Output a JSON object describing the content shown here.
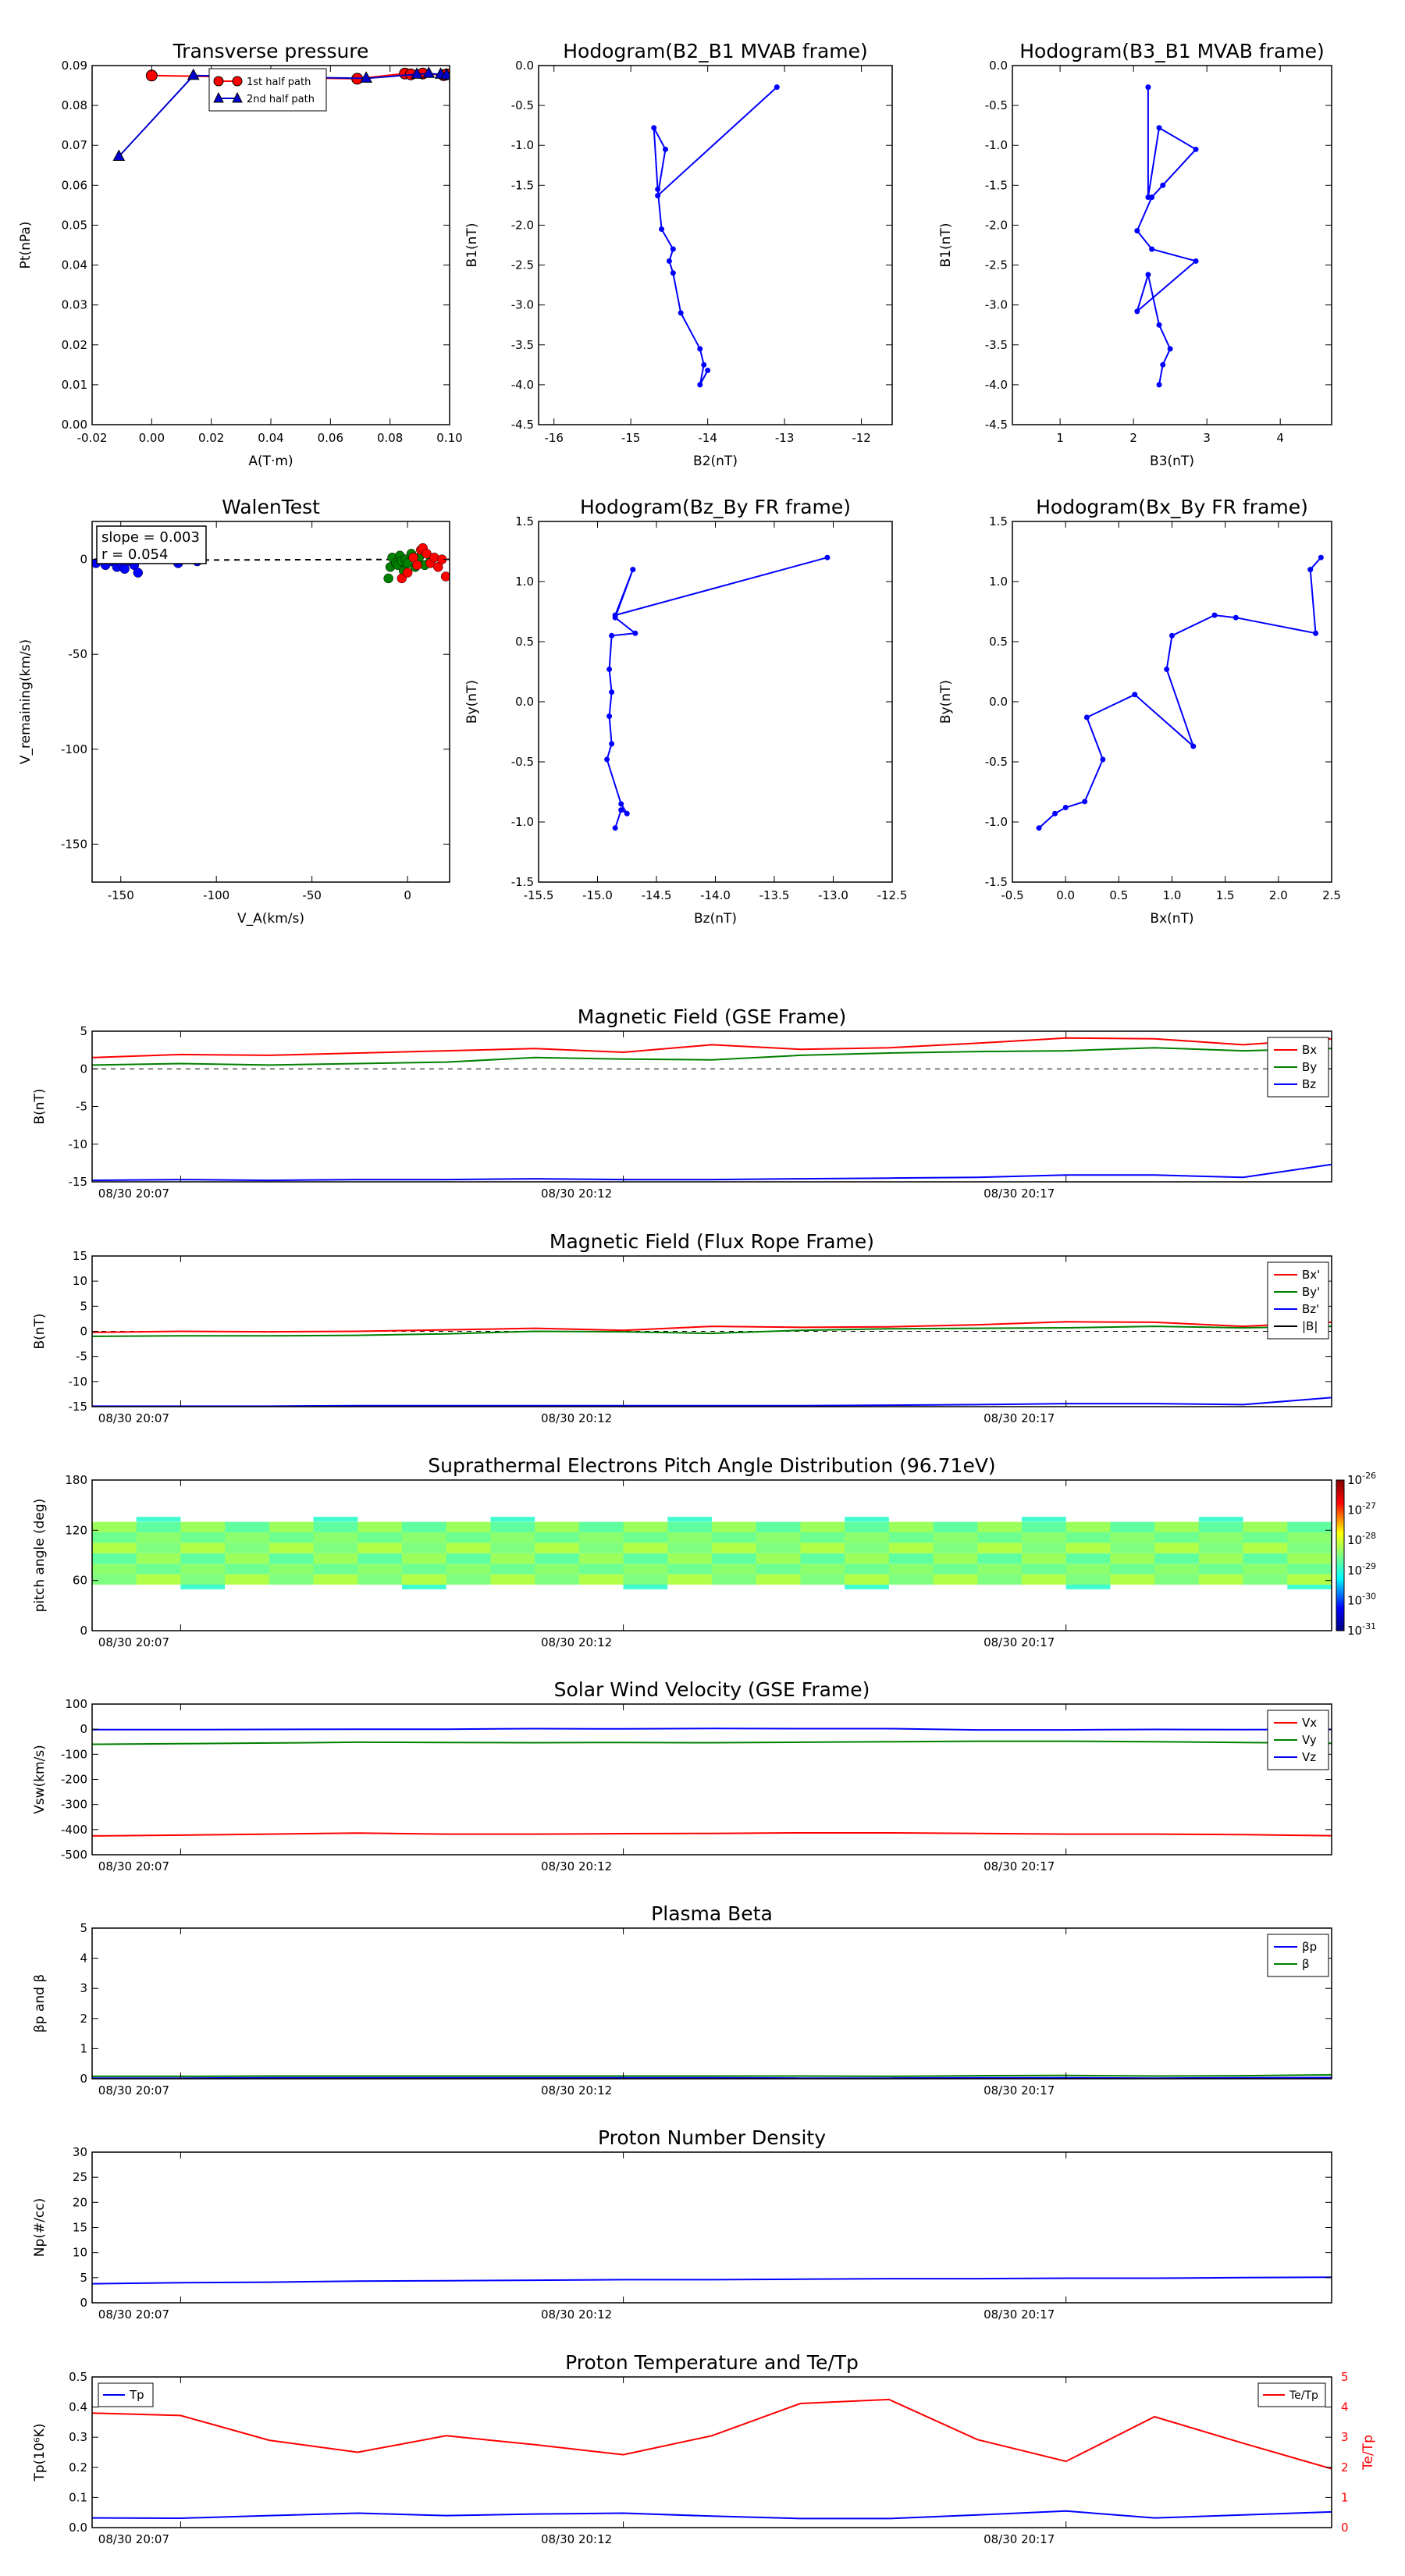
{
  "chart_data": [
    {
      "type": "line",
      "title": "Transverse pressure",
      "xlabel": "A(T·m)",
      "ylabel": "Pt(nPa)",
      "xlim": [
        -0.02,
        0.1
      ],
      "ylim": [
        0.0,
        0.09
      ],
      "xticks": [
        "-0.02",
        "0.00",
        "0.02",
        "0.04",
        "0.06",
        "0.08",
        "0.10"
      ],
      "yticks": [
        "0.00",
        "0.01",
        "0.02",
        "0.03",
        "0.04",
        "0.05",
        "0.06",
        "0.07",
        "0.08",
        "0.09"
      ],
      "legend": "top-center",
      "series": [
        {
          "name": "1st half path",
          "color": "#ff0000",
          "marker": "circle",
          "x": [
            0.0,
            0.069,
            0.085,
            0.087,
            0.091,
            0.098,
            0.099
          ],
          "y": [
            0.0875,
            0.0867,
            0.088,
            0.0878,
            0.088,
            0.0876,
            0.0878
          ]
        },
        {
          "name": "2nd half path",
          "color": "#0000cc",
          "marker": "triangle",
          "x": [
            -0.011,
            0.014,
            0.072,
            0.089,
            0.093,
            0.097,
            0.099
          ],
          "y": [
            0.0672,
            0.0875,
            0.0868,
            0.0878,
            0.088,
            0.0878,
            0.0876
          ]
        }
      ]
    },
    {
      "type": "line",
      "title": "Hodogram(B2_B1 MVAB frame)",
      "xlabel": "B2(nT)",
      "ylabel": "B1(nT)",
      "xlim": [
        -16.2,
        -11.6
      ],
      "ylim": [
        -4.5,
        0.0
      ],
      "xticks": [
        "-16",
        "-15",
        "-14",
        "-13",
        "-12"
      ],
      "yticks": [
        "-4.5",
        "-4.0",
        "-3.5",
        "-3.0",
        "-2.5",
        "-2.0",
        "-1.5",
        "-1.0",
        "-0.5",
        "0.0"
      ],
      "series": [
        {
          "name": "",
          "color": "#0000ff",
          "x": [
            -13.1,
            -14.65,
            -14.55,
            -14.7,
            -14.65,
            -14.6,
            -14.45,
            -14.5,
            -14.45,
            -14.35,
            -14.1,
            -14.05,
            -14.1,
            -14.0
          ],
          "y": [
            -0.27,
            -1.63,
            -1.05,
            -0.78,
            -1.55,
            -2.05,
            -2.3,
            -2.45,
            -2.6,
            -3.1,
            -3.55,
            -3.75,
            -4.0,
            -3.82
          ]
        }
      ]
    },
    {
      "type": "line",
      "title": "Hodogram(B3_B1 MVAB frame)",
      "xlabel": "B3(nT)",
      "ylabel": "B1(nT)",
      "xlim": [
        0.35,
        4.7
      ],
      "ylim": [
        -4.5,
        0.0
      ],
      "xticks": [
        "1",
        "2",
        "3",
        "4"
      ],
      "yticks": [
        "-4.5",
        "-4.0",
        "-3.5",
        "-3.0",
        "-2.5",
        "-2.0",
        "-1.5",
        "-1.0",
        "-0.5",
        "0.0"
      ],
      "series": [
        {
          "name": "",
          "color": "#0000ff",
          "x": [
            2.2,
            2.2,
            2.35,
            2.85,
            2.4,
            2.25,
            2.05,
            2.25,
            2.85,
            2.05,
            2.2,
            2.35,
            2.5,
            2.4,
            2.35
          ],
          "y": [
            -0.27,
            -1.65,
            -0.78,
            -1.05,
            -1.5,
            -1.65,
            -2.07,
            -2.3,
            -2.45,
            -3.08,
            -2.62,
            -3.25,
            -3.55,
            -3.75,
            -4.0
          ]
        }
      ]
    },
    {
      "type": "scatter",
      "title": "WalenTest",
      "xlabel": "V_A(km/s)",
      "ylabel": "V_remaining(km/s)",
      "xlim": [
        -165,
        22
      ],
      "ylim": [
        -170,
        20
      ],
      "xticks": [
        "-150",
        "-100",
        "-50",
        "0"
      ],
      "yticks": [
        "-150",
        "-100",
        "-50",
        "0"
      ],
      "annotations": [
        "slope = 0.003",
        "r = 0.054"
      ],
      "fit_line": {
        "slope": 0.003,
        "style": "dashed",
        "color": "#000000"
      },
      "series": [
        {
          "name": "",
          "color": "#0000ff",
          "x": [
            -163,
            -158,
            -155,
            -152,
            -150,
            -148,
            -145,
            -143,
            -141,
            -120,
            -110
          ],
          "y": [
            -2,
            -3,
            -1,
            -4,
            -2,
            -5,
            -1,
            -3,
            -7,
            -2,
            -1
          ]
        },
        {
          "name": "",
          "color": "#008000",
          "x": [
            -10,
            -9,
            -8,
            -6,
            -5,
            -4,
            -3,
            -2,
            -1,
            0,
            2,
            4,
            6,
            9,
            12
          ],
          "y": [
            -10,
            -4,
            1,
            -2,
            -3,
            2,
            -1,
            -6,
            0,
            -2,
            3,
            -4,
            1,
            -3,
            -1
          ]
        },
        {
          "name": "",
          "color": "#ff0000",
          "x": [
            -3,
            0,
            3,
            5,
            7,
            8,
            10,
            12,
            14,
            16,
            18,
            20
          ],
          "y": [
            -10,
            -7,
            1,
            -3,
            5,
            6,
            3,
            -2,
            1,
            -4,
            0,
            -9
          ]
        }
      ]
    },
    {
      "type": "line",
      "title": "Hodogram(Bz_By FR frame)",
      "xlabel": "Bz(nT)",
      "ylabel": "By(nT)",
      "xlim": [
        -15.5,
        -12.5
      ],
      "ylim": [
        -1.5,
        1.5
      ],
      "xticks": [
        "-15.5",
        "-15.0",
        "-14.5",
        "-14.0",
        "-13.5",
        "-13.0",
        "-12.5"
      ],
      "yticks": [
        "-1.5",
        "-1.0",
        "-0.5",
        "0.0",
        "0.5",
        "1.0",
        "1.5"
      ],
      "series": [
        {
          "name": "",
          "color": "#0000ff",
          "x": [
            -13.05,
            -14.85,
            -14.7,
            -14.85,
            -14.68,
            -14.88,
            -14.9,
            -14.88,
            -14.9,
            -14.88,
            -14.92,
            -14.8,
            -14.75,
            -14.8,
            -14.85
          ],
          "y": [
            1.2,
            0.72,
            1.1,
            0.7,
            0.57,
            0.55,
            0.27,
            0.08,
            -0.12,
            -0.35,
            -0.48,
            -0.85,
            -0.93,
            -0.9,
            -1.05
          ]
        }
      ]
    },
    {
      "type": "line",
      "title": "Hodogram(Bx_By FR frame)",
      "xlabel": "Bx(nT)",
      "ylabel": "By(nT)",
      "xlim": [
        -0.5,
        2.5
      ],
      "ylim": [
        -1.5,
        1.5
      ],
      "xticks": [
        "-0.5",
        "0.0",
        "0.5",
        "1.0",
        "1.5",
        "2.0",
        "2.5"
      ],
      "yticks": [
        "-1.5",
        "-1.0",
        "-0.5",
        "0.0",
        "0.5",
        "1.0",
        "1.5"
      ],
      "series": [
        {
          "name": "",
          "color": "#0000ff",
          "x": [
            2.4,
            2.3,
            2.35,
            1.6,
            1.4,
            1.0,
            0.95,
            1.2,
            0.65,
            0.2,
            0.35,
            0.18,
            0.0,
            -0.1,
            -0.25
          ],
          "y": [
            1.2,
            1.1,
            0.57,
            0.7,
            0.72,
            0.55,
            0.27,
            -0.37,
            0.06,
            -0.13,
            -0.48,
            -0.83,
            -0.88,
            -0.93,
            -1.05
          ]
        }
      ]
    },
    {
      "type": "line",
      "title": "Magnetic Field (GSE Frame)",
      "ylabel": "B(nT)",
      "ylim": [
        -15,
        5
      ],
      "yticks": [
        "-15",
        "-10",
        "-5",
        "0",
        "5"
      ],
      "xticks": [
        "08/30 20:07",
        "08/30 20:12",
        "08/30 20:17"
      ],
      "xtick_pos": [
        1,
        6,
        11
      ],
      "xlim": [
        0,
        14
      ],
      "legend": "top-right",
      "zero_line": true,
      "series": [
        {
          "name": "Bx",
          "color": "#ff0000",
          "y": [
            1.5,
            1.9,
            1.8,
            2.1,
            2.4,
            2.7,
            2.2,
            3.2,
            2.6,
            2.8,
            3.4,
            4.1,
            4.0,
            3.2,
            4.0
          ]
        },
        {
          "name": "By",
          "color": "#008000",
          "y": [
            0.5,
            0.7,
            0.5,
            0.7,
            0.9,
            1.5,
            1.3,
            1.2,
            1.8,
            2.1,
            2.3,
            2.4,
            2.8,
            2.4,
            2.7
          ]
        },
        {
          "name": "Bz",
          "color": "#0000ff",
          "y": [
            -14.8,
            -14.7,
            -14.8,
            -14.7,
            -14.7,
            -14.6,
            -14.7,
            -14.7,
            -14.6,
            -14.5,
            -14.4,
            -14.1,
            -14.1,
            -14.4,
            -12.7
          ]
        }
      ]
    },
    {
      "type": "line",
      "title": "Magnetic Field (Flux Rope Frame)",
      "ylabel": "B(nT)",
      "ylim": [
        -15,
        15
      ],
      "yticks": [
        "-15",
        "-10",
        "-5",
        "0",
        "5",
        "10",
        "15"
      ],
      "xticks": [
        "08/30 20:07",
        "08/30 20:12",
        "08/30 20:17"
      ],
      "xtick_pos": [
        1,
        6,
        11
      ],
      "xlim": [
        0,
        14
      ],
      "legend": "top-right",
      "zero_line": true,
      "series": [
        {
          "name": "Bx'",
          "color": "#ff0000",
          "y": [
            -0.2,
            0.0,
            -0.1,
            0.0,
            0.3,
            0.6,
            0.2,
            1.0,
            0.8,
            0.9,
            1.3,
            1.9,
            1.8,
            1.0,
            1.8
          ]
        },
        {
          "name": "By'",
          "color": "#008000",
          "y": [
            -1.0,
            -0.9,
            -0.9,
            -0.8,
            -0.5,
            0.0,
            -0.1,
            -0.4,
            0.2,
            0.5,
            0.6,
            0.7,
            1.0,
            0.7,
            1.0
          ]
        },
        {
          "name": "Bz'",
          "color": "#0000ff",
          "y": [
            -14.9,
            -14.9,
            -14.9,
            -14.8,
            -14.8,
            -14.8,
            -14.8,
            -14.8,
            -14.8,
            -14.7,
            -14.6,
            -14.4,
            -14.4,
            -14.6,
            -13.2
          ]
        },
        {
          "name": "|B|",
          "color": "#000000",
          "y": [
            15.2,
            15.2,
            15.2,
            15.2,
            15.2,
            15.2,
            15.2,
            15.2,
            15.2,
            15.2,
            15.2,
            15.2,
            15.2,
            15.2,
            15.2
          ]
        }
      ]
    },
    {
      "type": "heatmap",
      "title": "Suprathermal Electrons Pitch Angle Distribution (96.71eV)",
      "ylabel": "pitch angle (deg)",
      "ylim": [
        0,
        180
      ],
      "yticks": [
        "0",
        "60",
        "120",
        "180"
      ],
      "xticks": [
        "08/30 20:07",
        "08/30 20:12",
        "08/30 20:17"
      ],
      "xtick_pos": [
        1,
        6,
        11
      ],
      "xlim": [
        0,
        14
      ],
      "colorbar_ticks": [
        "10^-26",
        "10^-27",
        "10^-28",
        "10^-29",
        "10^-30",
        "10^-31"
      ],
      "band": {
        "low": 55,
        "high": 130
      }
    },
    {
      "type": "line",
      "title": "Solar Wind Velocity (GSE Frame)",
      "ylabel": "Vsw(km/s)",
      "ylim": [
        -500,
        100
      ],
      "yticks": [
        "-500",
        "-400",
        "-300",
        "-200",
        "-100",
        "0",
        "100"
      ],
      "xticks": [
        "08/30 20:07",
        "08/30 20:12",
        "08/30 20:17"
      ],
      "xtick_pos": [
        1,
        6,
        11
      ],
      "xlim": [
        0,
        14
      ],
      "legend": "top-right",
      "series": [
        {
          "name": "Vx",
          "color": "#ff0000",
          "y": [
            -425,
            -422,
            -418,
            -414,
            -418,
            -418,
            -416,
            -415,
            -413,
            -413,
            -415,
            -418,
            -418,
            -420,
            -424
          ]
        },
        {
          "name": "Vy",
          "color": "#008000",
          "y": [
            -60,
            -58,
            -55,
            -52,
            -53,
            -54,
            -53,
            -54,
            -52,
            -50,
            -48,
            -48,
            -50,
            -53,
            -56
          ]
        },
        {
          "name": "Vz",
          "color": "#0000ff",
          "y": [
            -2,
            -2,
            -1,
            0,
            0,
            2,
            1,
            3,
            2,
            2,
            -3,
            -3,
            -1,
            -2,
            -1
          ]
        }
      ]
    },
    {
      "type": "line",
      "title": "Plasma Beta",
      "ylabel": "βp and β",
      "ylim": [
        0,
        5
      ],
      "yticks": [
        "0",
        "1",
        "2",
        "3",
        "4",
        "5"
      ],
      "xticks": [
        "08/30 20:07",
        "08/30 20:12",
        "08/30 20:17"
      ],
      "xtick_pos": [
        1,
        6,
        11
      ],
      "xlim": [
        0,
        14
      ],
      "legend": "top-right",
      "series": [
        {
          "name": "βp",
          "color": "#0000ff",
          "y": [
            0.02,
            0.02,
            0.03,
            0.03,
            0.03,
            0.03,
            0.03,
            0.03,
            0.02,
            0.02,
            0.03,
            0.03,
            0.02,
            0.03,
            0.04
          ]
        },
        {
          "name": "β",
          "color": "#008000",
          "y": [
            0.08,
            0.08,
            0.09,
            0.09,
            0.09,
            0.09,
            0.09,
            0.09,
            0.09,
            0.08,
            0.1,
            0.11,
            0.09,
            0.1,
            0.13
          ]
        }
      ]
    },
    {
      "type": "line",
      "title": "Proton Number Density",
      "ylabel": "Np(#/cc)",
      "ylim": [
        0,
        30
      ],
      "yticks": [
        "0",
        "5",
        "10",
        "15",
        "20",
        "25",
        "30"
      ],
      "xticks": [
        "08/30 20:07",
        "08/30 20:12",
        "08/30 20:17"
      ],
      "xtick_pos": [
        1,
        6,
        11
      ],
      "xlim": [
        0,
        14
      ],
      "series": [
        {
          "name": "",
          "color": "#0000ff",
          "y": [
            3.8,
            4.0,
            4.1,
            4.3,
            4.4,
            4.5,
            4.6,
            4.6,
            4.7,
            4.8,
            4.8,
            4.9,
            4.9,
            5.0,
            5.1
          ]
        }
      ]
    },
    {
      "type": "line",
      "title": "Proton Temperature and Te/Tp",
      "ylabel": "Tp(10⁶K)",
      "ylim": [
        0,
        0.5
      ],
      "yticks": [
        "0.0",
        "0.1",
        "0.2",
        "0.3",
        "0.4",
        "0.5"
      ],
      "y2lim": [
        0,
        5
      ],
      "y2ticks": [
        "0",
        "1",
        "2",
        "3",
        "4",
        "5"
      ],
      "y2label": "Te/Tp",
      "xticks": [
        "08/30 20:07",
        "08/30 20:12",
        "08/30 20:17"
      ],
      "xtick_pos": [
        1,
        6,
        11
      ],
      "xlim": [
        0,
        14
      ],
      "series": [
        {
          "name": "Tp",
          "color": "#0000ff",
          "axis": "left",
          "y": [
            0.032,
            0.031,
            0.04,
            0.048,
            0.04,
            0.045,
            0.048,
            0.038,
            0.03,
            0.03,
            0.042,
            0.055,
            0.032,
            0.042,
            0.052
          ]
        },
        {
          "name": "Te/Tp",
          "color": "#ff0000",
          "axis": "right",
          "y": [
            3.8,
            3.72,
            2.9,
            2.5,
            3.05,
            2.75,
            2.42,
            3.05,
            4.12,
            4.25,
            2.92,
            2.2,
            3.68,
            2.8,
            1.95
          ]
        }
      ]
    }
  ]
}
